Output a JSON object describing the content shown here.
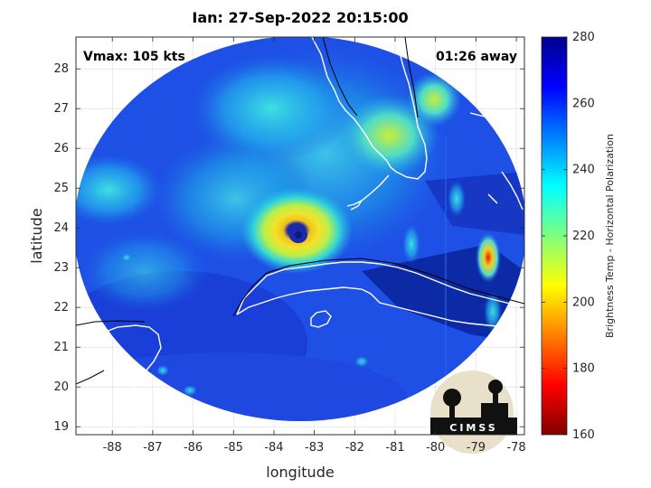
{
  "figure": {
    "title": "Ian: 27-Sep-2022 20:15:00",
    "vmax_text": "Vmax: 105 kts",
    "time_text": "01:26 away",
    "logo_text": "CIMSS"
  },
  "chart_data": {
    "type": "heatmap",
    "title": "Ian: 27-Sep-2022 20:15:00",
    "xlabel": "longitude",
    "ylabel": "latitude",
    "xlim": [
      -88.9,
      -77.8
    ],
    "ylim": [
      18.8,
      28.8
    ],
    "x_ticks": [
      -88,
      -87,
      -86,
      -85,
      -84,
      -83,
      -82,
      -81,
      -80,
      -79,
      -78
    ],
    "y_ticks": [
      19,
      20,
      21,
      22,
      23,
      24,
      25,
      26,
      27,
      28
    ],
    "grid": true,
    "storm_center": {
      "lon": -83.0,
      "lat": 23.9
    },
    "colorbar": {
      "label": "Brightness Temp - Horizontal Polarization",
      "range": [
        160,
        280
      ],
      "ticks": [
        160,
        180,
        200,
        220,
        240,
        260,
        280
      ],
      "colormap": "jet"
    }
  },
  "colors": {
    "ocean_blue": "#1e3fd8",
    "deep_blue": "#0c1e9a",
    "eye_yellow": "#f2df2a",
    "coastline": "#ffffff"
  }
}
